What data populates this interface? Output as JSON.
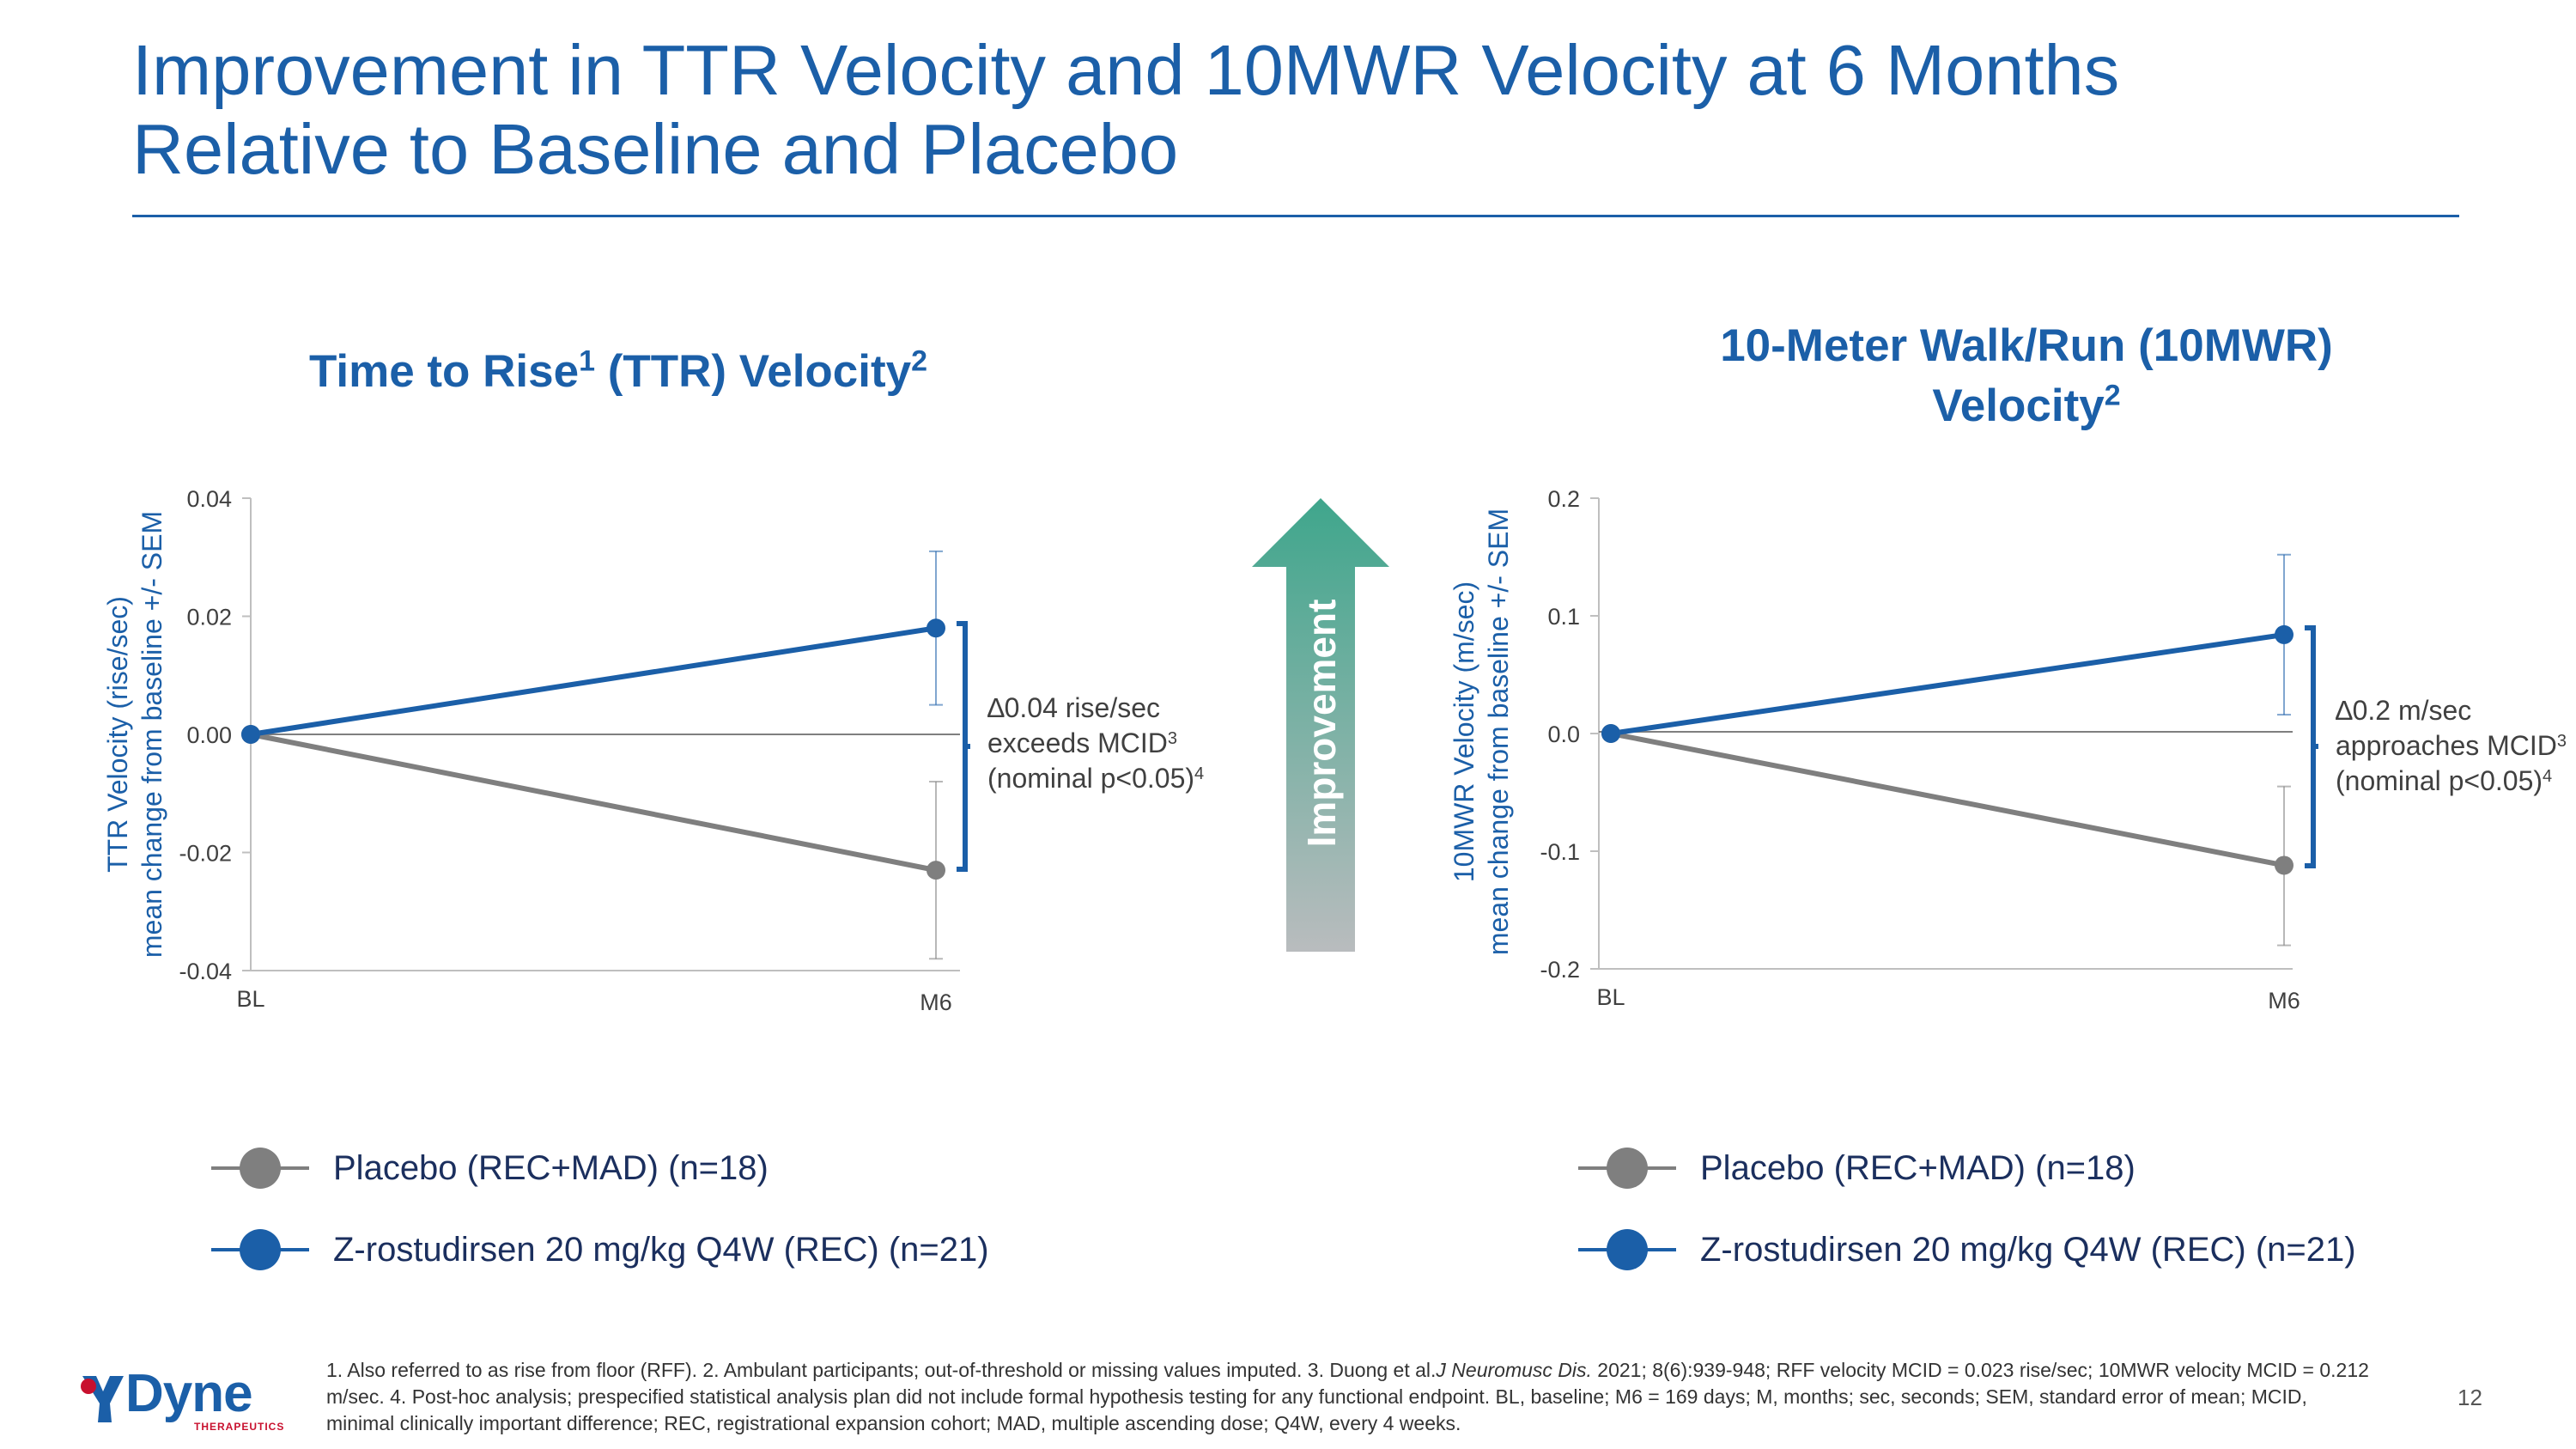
{
  "slide": {
    "title_line1": "Improvement in TTR Velocity and 10MWR Velocity at 6 Months",
    "title_line2": "Relative to Baseline and Placebo",
    "page_number": "12",
    "logo_text": "Dyne",
    "logo_sub": "THERAPEUTICS",
    "improvement_label": "Improvement",
    "footnote_a": "1. Also referred to as rise from floor (RFF). 2. Ambulant participants; out-of-threshold or missing values imputed. 3. Duong et al.",
    "footnote_journal": "J Neuromusc Dis.",
    "footnote_b": " 2021; 8(6):939-948; RFF velocity MCID = 0.023 rise/sec; 10MWR velocity MCID = 0.212 m/sec. 4. Post-hoc analysis; prespecified statistical analysis plan did not include formal hypothesis testing for any functional endpoint. BL, baseline; M6 = 169 days; M, months; sec, seconds; SEM, standard error of mean; MCID, minimal clinically important difference; REC, registrational expansion cohort; MAD, multiple ascending dose; Q4W, every 4 weeks.",
    "colors": {
      "primary": "#1b5fa8",
      "placebo": "#7f7f7f",
      "arrow_top": "#3fa68c",
      "arrow_bottom": "#b9bcbe"
    }
  },
  "charts": [
    {
      "title_main": "Time to Rise",
      "title_sup1": "1",
      "title_mid": " (TTR) Velocity",
      "title_sup2": "2",
      "ylabel_line1": "TTR Velocity (rise/sec)",
      "ylabel_line2": "mean change from baseline +/- SEM",
      "annotation": [
        "∆0.04 rise/sec",
        "exceeds MCID",
        "(nominal p<0.05)"
      ],
      "annotation_sup": [
        "",
        "3",
        "4"
      ],
      "legend": [
        "Placebo (REC+MAD) (n=18)",
        "Z-rostudirsen 20 mg/kg Q4W (REC) (n=21)"
      ]
    },
    {
      "title_line1": "10-Meter Walk/Run (10MWR)",
      "title_line2": "Velocity",
      "title_sup2": "2",
      "ylabel_line1": "10MWR Velocity (m/sec)",
      "ylabel_line2": "mean change from baseline +/- SEM",
      "annotation": [
        "∆0.2 m/sec",
        "approaches MCID",
        "(nominal p<0.05)"
      ],
      "annotation_sup": [
        "",
        "3",
        "4"
      ],
      "legend": [
        "Placebo (REC+MAD) (n=18)",
        "Z-rostudirsen 20 mg/kg Q4W (REC) (n=21)"
      ]
    }
  ],
  "chart_data": [
    {
      "type": "line",
      "title": "Time to Rise (TTR) Velocity",
      "categories": [
        "BL",
        "M6"
      ],
      "ylabel": "TTR Velocity (rise/sec) mean change from baseline +/- SEM",
      "ylim": [
        -0.04,
        0.04
      ],
      "yticks": [
        "0.04",
        "0.02",
        "0.00",
        "-0.02",
        "-0.04"
      ],
      "ytick_values": [
        0.04,
        0.02,
        0.0,
        -0.02,
        -0.04
      ],
      "series": [
        {
          "name": "Placebo (REC+MAD) (n=18)",
          "values": [
            0.0,
            -0.023
          ],
          "sem_low": [
            0.0,
            -0.038
          ],
          "sem_high": [
            0.0,
            -0.008
          ],
          "color": "#7f7f7f"
        },
        {
          "name": "Z-rostudirsen 20 mg/kg Q4W (REC) (n=21)",
          "values": [
            0.0,
            0.018
          ],
          "sem_low": [
            0.0,
            0.005
          ],
          "sem_high": [
            0.0,
            0.031
          ],
          "color": "#1b5fa8"
        }
      ]
    },
    {
      "type": "line",
      "title": "10-Meter Walk/Run (10MWR) Velocity",
      "categories": [
        "BL",
        "M6"
      ],
      "ylabel": "10MWR Velocity (m/sec) mean change from baseline +/- SEM",
      "ylim": [
        -0.2,
        0.2
      ],
      "yticks": [
        "0.2",
        "0.1",
        "0.0",
        "-0.1",
        "-0.2"
      ],
      "ytick_values": [
        0.2,
        0.1,
        0.0,
        -0.1,
        -0.2
      ],
      "series": [
        {
          "name": "Placebo (REC+MAD) (n=18)",
          "values": [
            0.0,
            -0.112
          ],
          "sem_low": [
            0.0,
            -0.18
          ],
          "sem_high": [
            0.0,
            -0.045
          ],
          "color": "#7f7f7f"
        },
        {
          "name": "Z-rostudirsen 20 mg/kg Q4W (REC) (n=21)",
          "values": [
            0.0,
            0.084
          ],
          "sem_low": [
            0.0,
            0.016
          ],
          "sem_high": [
            0.0,
            0.152
          ],
          "color": "#1b5fa8"
        }
      ]
    }
  ]
}
